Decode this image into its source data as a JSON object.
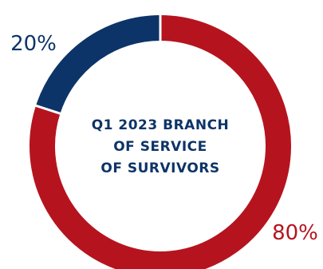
{
  "chart_data": {
    "type": "pie",
    "title": "Q1 2023 BRANCH OF SERVICE OF SURVIVORS",
    "title_lines": [
      "Q1 2023 BRANCH",
      "OF SERVICE",
      "OF SURVIVORS"
    ],
    "slices": [
      {
        "value": 80,
        "label": "80%",
        "color": "#b5141f"
      },
      {
        "value": 20,
        "label": "20%",
        "color": "#0d3468"
      }
    ],
    "legend": "none",
    "title_color": "#0d3468"
  }
}
